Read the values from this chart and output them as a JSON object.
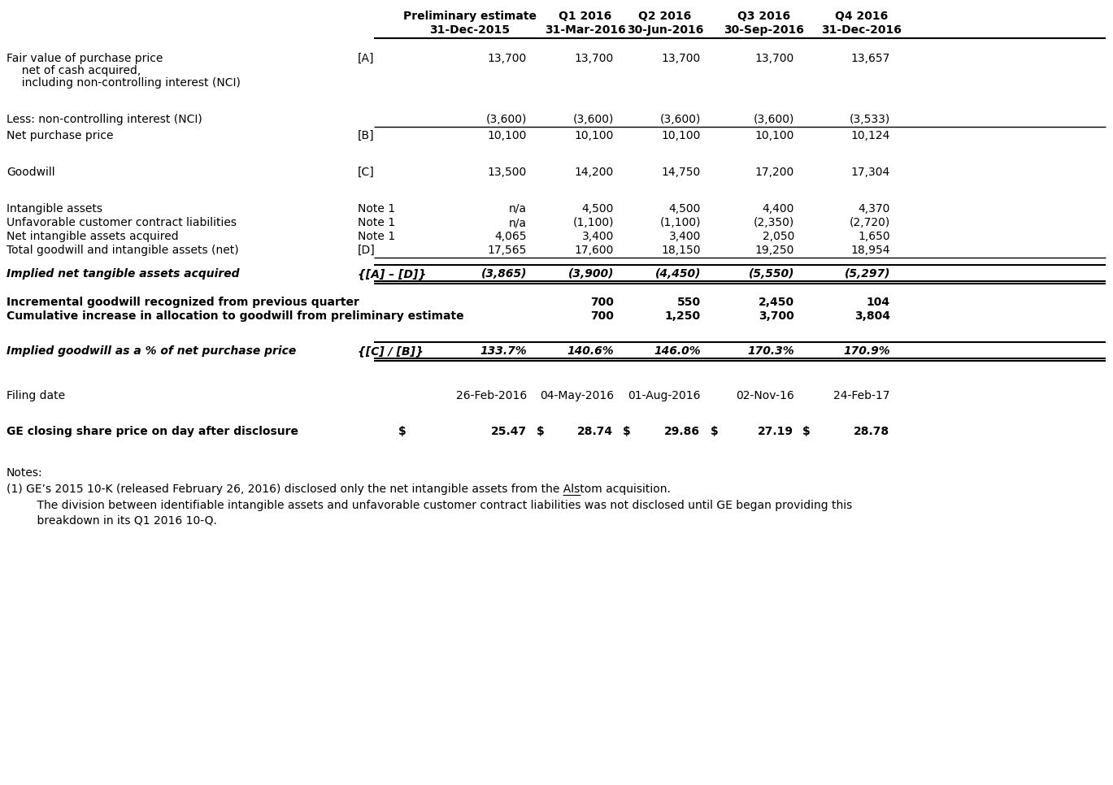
{
  "bg_color": "#ffffff",
  "text_color": "#000000",
  "headers": {
    "col1": "Preliminary estimate",
    "col1_date": "31-Dec-2015",
    "col2": "Q1 2016",
    "col2_date": "31-Mar-2016",
    "col3": "Q2 2016",
    "col3_date": "30-Jun-2016",
    "col4": "Q3 2016",
    "col4_date": "30-Sep-2016",
    "col5": "Q4 2016",
    "col5_date": "31-Dec-2016"
  },
  "rows": [
    {
      "label": "Fair value of purchase price",
      "label2": "  net of cash acquired,",
      "label3": "  including non-controlling interest (NCI)",
      "ref": "[A]",
      "values": [
        "13,700",
        "13,700",
        "13,700",
        "13,700",
        "13,657"
      ],
      "bold": false,
      "italic": false
    },
    {
      "label": "Less: non-controlling interest (NCI)",
      "ref": "",
      "values": [
        "(3,600)",
        "(3,600)",
        "(3,600)",
        "(3,600)",
        "(3,533)"
      ],
      "bold": false,
      "italic": false,
      "underline_below": true
    },
    {
      "label": "Net purchase price",
      "ref": "[B]",
      "values": [
        "10,100",
        "10,100",
        "10,100",
        "10,100",
        "10,124"
      ],
      "bold": false,
      "italic": false
    },
    {
      "label": "Goodwill",
      "ref": "[C]",
      "values": [
        "13,500",
        "14,200",
        "14,750",
        "17,200",
        "17,304"
      ],
      "bold": false,
      "italic": false
    },
    {
      "label": "Intangible assets",
      "ref": "Note 1",
      "values": [
        "n/a",
        "4,500",
        "4,500",
        "4,400",
        "4,370"
      ],
      "bold": false,
      "italic": false
    },
    {
      "label": "Unfavorable customer contract liabilities",
      "ref": "Note 1",
      "values": [
        "n/a",
        "(1,100)",
        "(1,100)",
        "(2,350)",
        "(2,720)"
      ],
      "bold": false,
      "italic": false
    },
    {
      "label": "Net intangible assets acquired",
      "ref": "Note 1",
      "values": [
        "4,065",
        "3,400",
        "3,400",
        "2,050",
        "1,650"
      ],
      "bold": false,
      "italic": false
    },
    {
      "label": "Total goodwill and intangible assets (net)",
      "ref": "[D]",
      "values": [
        "17,565",
        "17,600",
        "18,150",
        "19,250",
        "18,954"
      ],
      "bold": false,
      "italic": false,
      "underline_below": true
    },
    {
      "label": "Implied net tangible assets acquired",
      "ref": "{[A] – [D]}",
      "values": [
        "(3,865)",
        "(3,900)",
        "(4,450)",
        "(5,550)",
        "(5,297)"
      ],
      "bold": true,
      "italic": true,
      "underline_above": true,
      "underline_below": true
    },
    {
      "label": "Incremental goodwill recognized from previous quarter",
      "ref": "",
      "values": [
        "",
        "700",
        "550",
        "2,450",
        "104"
      ],
      "bold": true,
      "italic": false
    },
    {
      "label": "Cumulative increase in allocation to goodwill from preliminary estimate",
      "ref": "",
      "values": [
        "",
        "700",
        "1,250",
        "3,700",
        "3,804"
      ],
      "bold": true,
      "italic": false
    },
    {
      "label": "Implied goodwill as a % of net purchase price",
      "ref": "{[C] / [B]}",
      "values": [
        "133.7%",
        "140.6%",
        "146.0%",
        "170.3%",
        "170.9%"
      ],
      "bold": true,
      "italic": true,
      "underline_above": true,
      "underline_below": true
    },
    {
      "label": "Filing date",
      "ref": "",
      "values": [
        "26-Feb-2016",
        "04-May-2016",
        "01-Aug-2016",
        "02-Nov-16",
        "24-Feb-17"
      ],
      "bold": false,
      "italic": false
    },
    {
      "label": "GE closing share price on day after disclosure",
      "ref": "",
      "values": [
        "25.47",
        "28.74",
        "29.86",
        "27.19",
        "28.78"
      ],
      "bold": true,
      "italic": false,
      "dollar": true
    }
  ],
  "notes": [
    "Notes:",
    "(1) GE’s 2015 10-K (released February 26, 2016) disclosed only the net intangible assets from the Alstom acquisition.",
    "    The division between identifiable intangible assets and unfavorable customer contract liabilities was not disclosed until GE began providing this",
    "    breakdown in its Q1 2016 10-Q."
  ]
}
